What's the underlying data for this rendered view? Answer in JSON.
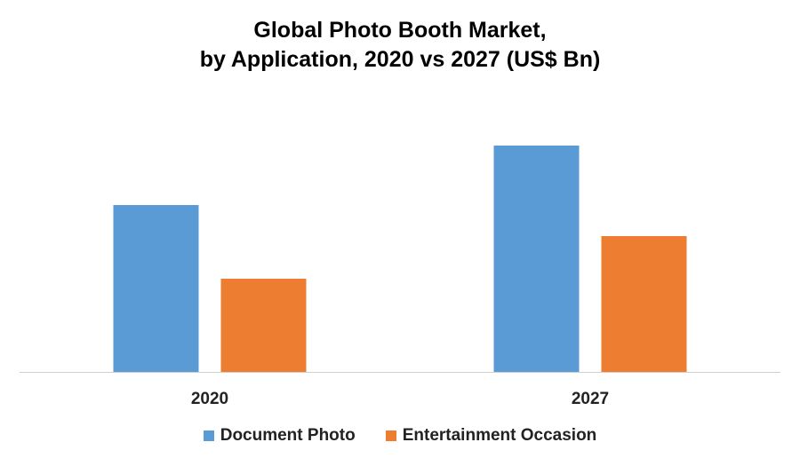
{
  "chart_data": {
    "type": "bar",
    "title_lines": [
      "Global Photo Booth Market,",
      "by Application, 2020 vs 2027 (US$ Bn)"
    ],
    "categories": [
      "2020",
      "2027"
    ],
    "series": [
      {
        "name": "Document Photo",
        "values": [
          1.88,
          2.55
        ],
        "color": "#5b9bd5"
      },
      {
        "name": "Entertainment Occasion",
        "values": [
          1.05,
          1.53
        ],
        "color": "#ed7d31"
      }
    ],
    "ylim": [
      0,
      3.0
    ],
    "grid": false,
    "legend_position": "bottom"
  }
}
